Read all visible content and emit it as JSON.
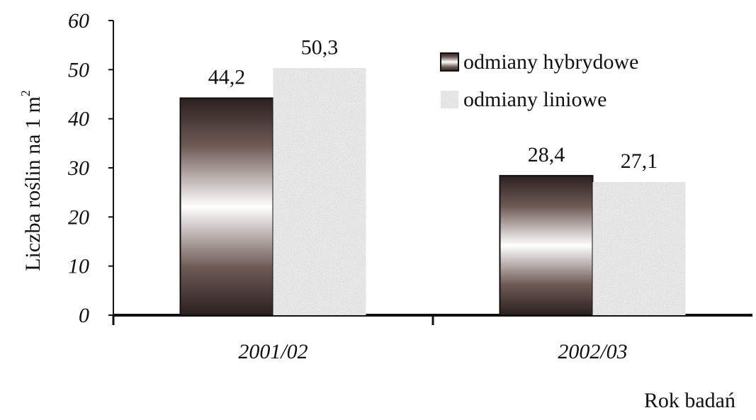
{
  "chart_data": {
    "type": "bar",
    "categories": [
      "2001/02",
      "2002/03"
    ],
    "series": [
      {
        "name": "odmiany hybrydowe",
        "values": [
          44.2,
          28.4
        ],
        "data_labels": [
          "44,2",
          "28,4"
        ],
        "fill": "gradient-brown"
      },
      {
        "name": "odmiany liniowe",
        "values": [
          50.3,
          27.1
        ],
        "data_labels": [
          "50,3",
          "27,1"
        ],
        "fill": "granite-gray"
      }
    ],
    "yticks": [
      "0",
      "10",
      "20",
      "30",
      "40",
      "50",
      "60"
    ],
    "ylim": [
      0,
      60
    ],
    "ylabel": "Liczba roślin na 1 m",
    "ylabel_sup": "2",
    "xlabel": "Rok badań",
    "grid": false,
    "legend_position": "top-right",
    "colors": {
      "dark": "#2f2422",
      "light": "#ffffff",
      "stone": "#b8b8b8",
      "axis": "#111111"
    }
  }
}
